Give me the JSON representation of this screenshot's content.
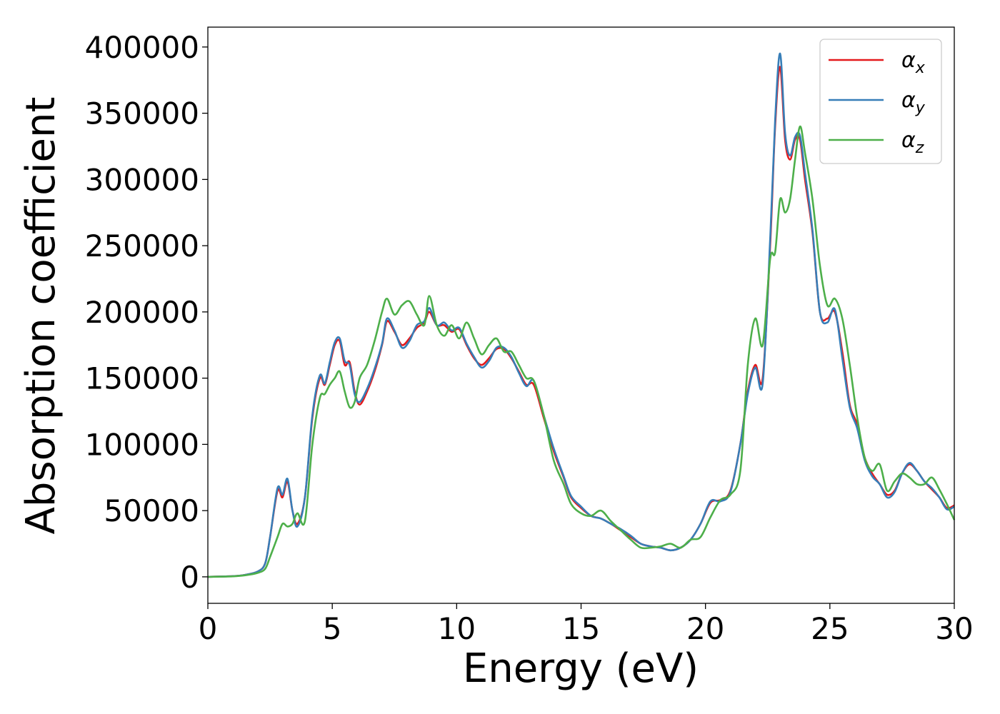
{
  "chart_data": {
    "type": "line",
    "xlabel": "Energy (eV)",
    "ylabel": "Absorption coefficient",
    "xlim": [
      0,
      30
    ],
    "ylim": [
      -20000,
      415000
    ],
    "grid": false,
    "legend_position": "top-right",
    "x_ticks": [
      0,
      5,
      10,
      15,
      20,
      25,
      30
    ],
    "x_tick_labels": [
      "0",
      "5",
      "10",
      "15",
      "20",
      "25",
      "30"
    ],
    "y_ticks": [
      0,
      50000,
      100000,
      150000,
      200000,
      250000,
      300000,
      350000,
      400000
    ],
    "y_tick_labels": [
      "0",
      "50000",
      "100000",
      "150000",
      "200000",
      "250000",
      "300000",
      "350000",
      "400000"
    ],
    "series": [
      {
        "name": "α",
        "subscript": "x",
        "color": "#e41a1c",
        "x": [
          0,
          1,
          1.5,
          2,
          2.3,
          2.5,
          2.8,
          3,
          3.2,
          3.4,
          3.6,
          3.9,
          4.2,
          4.5,
          4.7,
          4.9,
          5.1,
          5.3,
          5.5,
          5.7,
          5.9,
          6.1,
          6.4,
          6.7,
          7,
          7.2,
          7.5,
          7.8,
          8.1,
          8.4,
          8.7,
          8.9,
          9.2,
          9.5,
          9.8,
          10.1,
          10.4,
          10.7,
          11,
          11.3,
          11.6,
          11.9,
          12.2,
          12.5,
          12.8,
          13.1,
          13.5,
          13.9,
          14.3,
          14.6,
          15,
          15.4,
          15.8,
          16.2,
          16.6,
          17,
          17.4,
          17.8,
          18.2,
          18.6,
          19,
          19.4,
          19.8,
          20.2,
          20.6,
          21,
          21.4,
          21.7,
          22,
          22.3,
          22.6,
          22.8,
          23,
          23.2,
          23.4,
          23.6,
          23.8,
          24,
          24.3,
          24.6,
          24.9,
          25.2,
          25.5,
          25.8,
          26.1,
          26.4,
          26.7,
          27,
          27.3,
          27.6,
          27.9,
          28.2,
          28.5,
          28.8,
          29.1,
          29.4,
          29.7,
          30
        ],
        "y": [
          0,
          500,
          1500,
          4000,
          10000,
          30000,
          65000,
          60000,
          72000,
          50000,
          40000,
          60000,
          120000,
          150000,
          145000,
          160000,
          175000,
          178000,
          160000,
          162000,
          140000,
          130000,
          140000,
          155000,
          175000,
          193000,
          185000,
          175000,
          180000,
          188000,
          192000,
          200000,
          190000,
          190000,
          185000,
          187000,
          175000,
          165000,
          160000,
          165000,
          172000,
          172000,
          165000,
          155000,
          145000,
          145000,
          120000,
          95000,
          75000,
          60000,
          52000,
          46000,
          44000,
          40000,
          35000,
          30000,
          25000,
          23000,
          22000,
          20000,
          22000,
          28000,
          40000,
          56000,
          58000,
          65000,
          100000,
          140000,
          160000,
          150000,
          250000,
          340000,
          385000,
          330000,
          315000,
          330000,
          330000,
          300000,
          260000,
          200000,
          195000,
          200000,
          170000,
          130000,
          115000,
          90000,
          78000,
          70000,
          62000,
          65000,
          78000,
          85000,
          80000,
          72000,
          66000,
          60000,
          52000,
          54000
        ]
      },
      {
        "name": "α",
        "subscript": "y",
        "color": "#377eb8",
        "x": [
          0,
          1,
          1.5,
          2,
          2.3,
          2.5,
          2.8,
          3,
          3.2,
          3.4,
          3.6,
          3.9,
          4.2,
          4.5,
          4.7,
          4.9,
          5.1,
          5.3,
          5.5,
          5.7,
          5.9,
          6.1,
          6.4,
          6.7,
          7,
          7.2,
          7.5,
          7.8,
          8.1,
          8.4,
          8.7,
          8.9,
          9.2,
          9.5,
          9.8,
          10.1,
          10.4,
          10.7,
          11,
          11.3,
          11.6,
          11.9,
          12.2,
          12.5,
          12.8,
          13.1,
          13.5,
          13.9,
          14.3,
          14.6,
          15,
          15.4,
          15.8,
          16.2,
          16.6,
          17,
          17.4,
          17.8,
          18.2,
          18.6,
          19,
          19.4,
          19.8,
          20.2,
          20.6,
          21,
          21.4,
          21.7,
          22,
          22.3,
          22.6,
          22.8,
          23,
          23.2,
          23.4,
          23.6,
          23.8,
          24,
          24.3,
          24.6,
          24.9,
          25.2,
          25.5,
          25.8,
          26.1,
          26.4,
          26.7,
          27,
          27.3,
          27.6,
          27.9,
          28.2,
          28.5,
          28.8,
          29.1,
          29.4,
          29.7,
          30
        ],
        "y": [
          0,
          500,
          1500,
          4000,
          10000,
          30000,
          67000,
          62000,
          74000,
          50000,
          38000,
          60000,
          122000,
          152000,
          146000,
          162000,
          177000,
          180000,
          163000,
          160000,
          138000,
          132000,
          142000,
          157000,
          176000,
          195000,
          186000,
          173000,
          178000,
          190000,
          193000,
          203000,
          190000,
          192000,
          186000,
          188000,
          176000,
          166000,
          158000,
          163000,
          173000,
          173000,
          166000,
          154000,
          144000,
          148000,
          122000,
          97000,
          76000,
          61000,
          53000,
          46000,
          44000,
          40000,
          36000,
          31000,
          25000,
          23000,
          22000,
          20000,
          22000,
          28000,
          40000,
          57000,
          57000,
          64000,
          100000,
          138000,
          158000,
          146000,
          255000,
          345000,
          395000,
          335000,
          318000,
          332000,
          333000,
          305000,
          262000,
          200000,
          192000,
          202000,
          165000,
          128000,
          112000,
          88000,
          76000,
          70000,
          60000,
          64000,
          78000,
          86000,
          80000,
          72000,
          67000,
          60000,
          51000,
          53000
        ]
      },
      {
        "name": "α",
        "subscript": "z",
        "color": "#4daf4a",
        "x": [
          0,
          1,
          1.5,
          2,
          2.3,
          2.5,
          2.8,
          3,
          3.2,
          3.4,
          3.6,
          3.9,
          4.2,
          4.5,
          4.7,
          4.9,
          5.1,
          5.3,
          5.5,
          5.7,
          5.9,
          6.1,
          6.4,
          6.7,
          7,
          7.2,
          7.5,
          7.8,
          8.1,
          8.4,
          8.7,
          8.9,
          9.2,
          9.5,
          9.8,
          10.1,
          10.4,
          10.7,
          11,
          11.3,
          11.6,
          11.9,
          12.2,
          12.5,
          12.8,
          13.1,
          13.5,
          13.9,
          14.3,
          14.6,
          15,
          15.4,
          15.8,
          16.2,
          16.6,
          17,
          17.4,
          17.8,
          18.2,
          18.6,
          19,
          19.4,
          19.8,
          20.2,
          20.6,
          21,
          21.4,
          21.7,
          22,
          22.3,
          22.6,
          22.8,
          23,
          23.2,
          23.4,
          23.6,
          23.8,
          24,
          24.3,
          24.6,
          24.9,
          25.2,
          25.5,
          25.8,
          26.1,
          26.4,
          26.7,
          27,
          27.3,
          27.6,
          27.9,
          28.2,
          28.5,
          28.8,
          29.1,
          29.4,
          29.7,
          30
        ],
        "y": [
          0,
          400,
          1200,
          3000,
          6000,
          15000,
          30000,
          40000,
          38000,
          40000,
          48000,
          42000,
          100000,
          135000,
          138000,
          145000,
          150000,
          155000,
          140000,
          128000,
          132000,
          150000,
          160000,
          178000,
          200000,
          210000,
          198000,
          205000,
          208000,
          198000,
          190000,
          212000,
          190000,
          182000,
          190000,
          180000,
          192000,
          180000,
          168000,
          175000,
          180000,
          170000,
          170000,
          160000,
          150000,
          148000,
          122000,
          88000,
          70000,
          55000,
          48000,
          46000,
          50000,
          42000,
          35000,
          28000,
          22000,
          22000,
          23000,
          25000,
          22000,
          28000,
          30000,
          45000,
          58000,
          62000,
          80000,
          160000,
          195000,
          175000,
          240000,
          245000,
          285000,
          275000,
          285000,
          315000,
          340000,
          320000,
          285000,
          235000,
          205000,
          210000,
          195000,
          160000,
          120000,
          90000,
          80000,
          85000,
          65000,
          72000,
          78000,
          75000,
          70000,
          70000,
          75000,
          66000,
          55000,
          43000
        ]
      }
    ]
  }
}
